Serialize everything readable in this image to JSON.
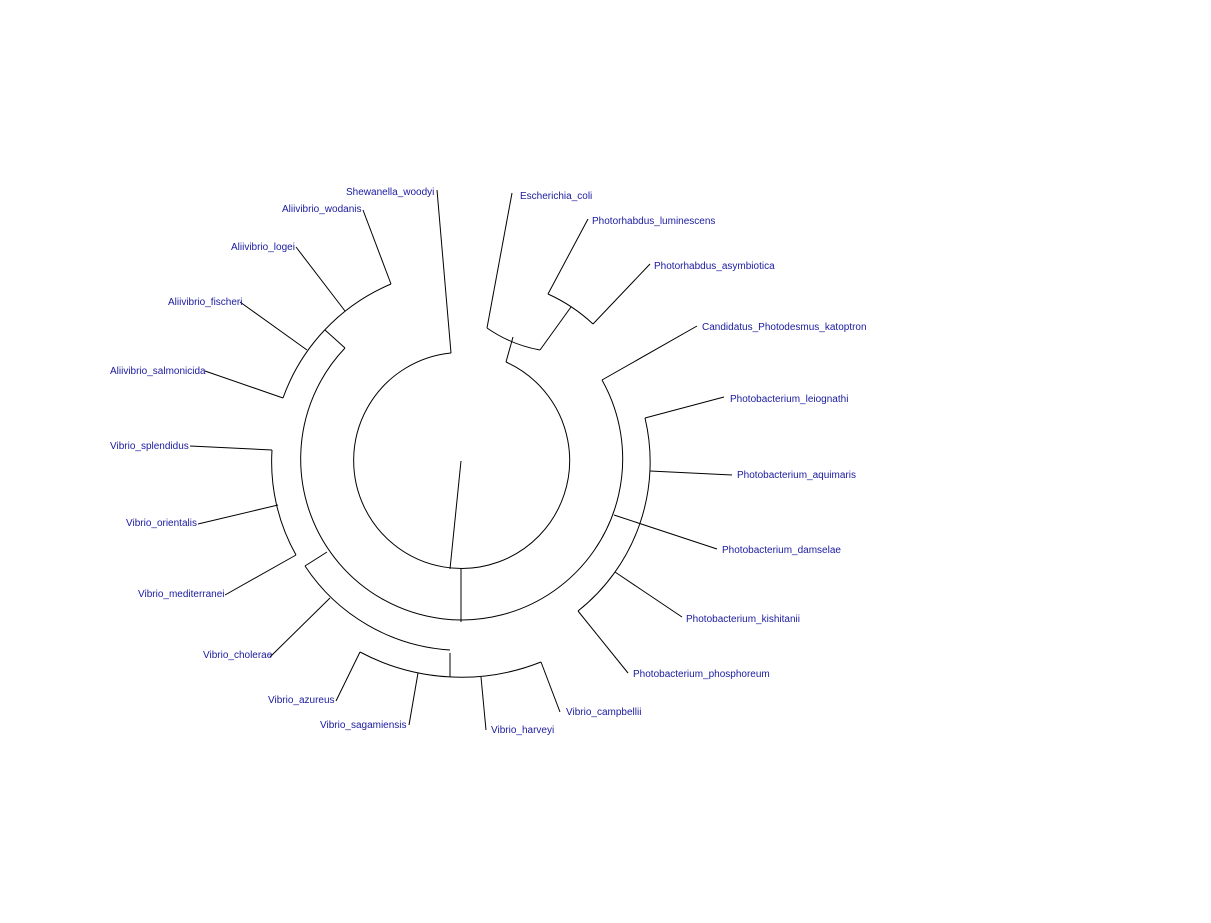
{
  "tree": {
    "type": "circular-phylogram",
    "label_color": "#1a1aa0",
    "branch_color": "#000000",
    "leaves": [
      {
        "name": "Escherichia_coli"
      },
      {
        "name": "Photorhabdus_luminescens"
      },
      {
        "name": "Photorhabdus_asymbiotica"
      },
      {
        "name": "Candidatus_Photodesmus_katoptron"
      },
      {
        "name": "Photobacterium_leiognathi"
      },
      {
        "name": "Photobacterium_aquimaris"
      },
      {
        "name": "Photobacterium_damselae"
      },
      {
        "name": "Photobacterium_kishitanii"
      },
      {
        "name": "Photobacterium_phosphoreum"
      },
      {
        "name": "Vibrio_campbellii"
      },
      {
        "name": "Vibrio_harveyi"
      },
      {
        "name": "Vibrio_sagamiensis"
      },
      {
        "name": "Vibrio_azureus"
      },
      {
        "name": "Vibrio_cholerae"
      },
      {
        "name": "Vibrio_mediterranei"
      },
      {
        "name": "Vibrio_orientalis"
      },
      {
        "name": "Vibrio_splendidus"
      },
      {
        "name": "Aliivibrio_salmonicida"
      },
      {
        "name": "Aliivibrio_fischeri"
      },
      {
        "name": "Aliivibrio_logei"
      },
      {
        "name": "Aliivibrio_wodanis"
      },
      {
        "name": "Shewanella_woodyi"
      }
    ]
  }
}
